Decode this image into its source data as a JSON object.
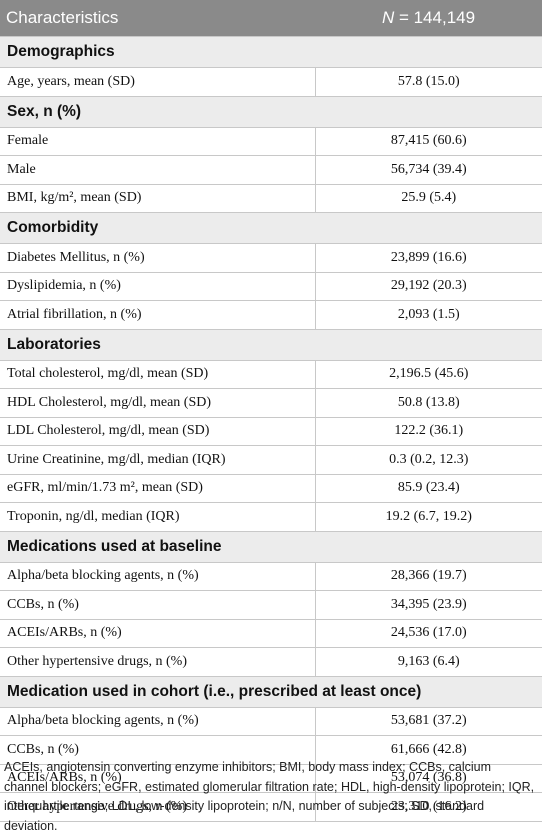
{
  "header": {
    "label_col": "Characteristics",
    "n_symbol": "N",
    "n_value": "= 144,149"
  },
  "sections": [
    {
      "title": "Demographics",
      "rows": [
        {
          "label": "Age, years, mean (SD)",
          "value": "57.8 (15.0)"
        }
      ]
    },
    {
      "title": "Sex, n (%)",
      "rows": [
        {
          "label": "Female",
          "value": "87,415 (60.6)"
        },
        {
          "label": "Male",
          "value": "56,734 (39.4)"
        },
        {
          "label": "BMI, kg/m², mean (SD)",
          "value": "25.9 (5.4)"
        }
      ]
    },
    {
      "title": "Comorbidity",
      "rows": [
        {
          "label": "Diabetes Mellitus, n (%)",
          "value": "23,899 (16.6)"
        },
        {
          "label": "Dyslipidemia, n (%)",
          "value": "29,192 (20.3)"
        },
        {
          "label": "Atrial fibrillation, n (%)",
          "value": "2,093 (1.5)"
        }
      ]
    },
    {
      "title": "Laboratories",
      "rows": [
        {
          "label": "Total cholesterol, mg/dl, mean (SD)",
          "value": "2,196.5 (45.6)"
        },
        {
          "label": "HDL Cholesterol, mg/dl, mean (SD)",
          "value": "50.8 (13.8)"
        },
        {
          "label": "LDL Cholesterol, mg/dl, mean (SD)",
          "value": "122.2 (36.1)"
        },
        {
          "label": "Urine Creatinine, mg/dl, median (IQR)",
          "value": "0.3 (0.2, 12.3)"
        },
        {
          "label": "eGFR, ml/min/1.73 m², mean (SD)",
          "value": "85.9 (23.4)"
        },
        {
          "label": "Troponin, ng/dl, median (IQR)",
          "value": "19.2 (6.7, 19.2)"
        }
      ]
    },
    {
      "title": "Medications used at baseline",
      "rows": [
        {
          "label": "Alpha/beta blocking agents, n (%)",
          "value": "28,366 (19.7)"
        },
        {
          "label": "CCBs, n (%)",
          "value": "34,395 (23.9)"
        },
        {
          "label": "ACEIs/ARBs, n (%)",
          "value": "24,536 (17.0)"
        },
        {
          "label": "Other hypertensive drugs, n (%)",
          "value": "9,163 (6.4)"
        }
      ]
    },
    {
      "title": "Medication used in cohort (i.e., prescribed at least once)",
      "rows": [
        {
          "label": "Alpha/beta blocking agents, n (%)",
          "value": "53,681 (37.2)"
        },
        {
          "label": "CCBs, n (%)",
          "value": "61,666 (42.8)"
        },
        {
          "label": "ACEIs/ARBs, n (%)",
          "value": "53,074 (36.8)"
        },
        {
          "label": "Other hypertensive drugs, n (%)",
          "value": "23,310 (16.2)"
        }
      ]
    }
  ],
  "footnote": "ACEIs, angiotensin converting enzyme inhibitors; BMI, body mass index; CCBs, calcium channel blockers; eGFR, estimated glomerular filtration rate; HDL, high-density lipoprotein; IQR, interquartile range; LDL, low-density lipoprotein; n/N, number of subjects; SD, standard deviation."
}
